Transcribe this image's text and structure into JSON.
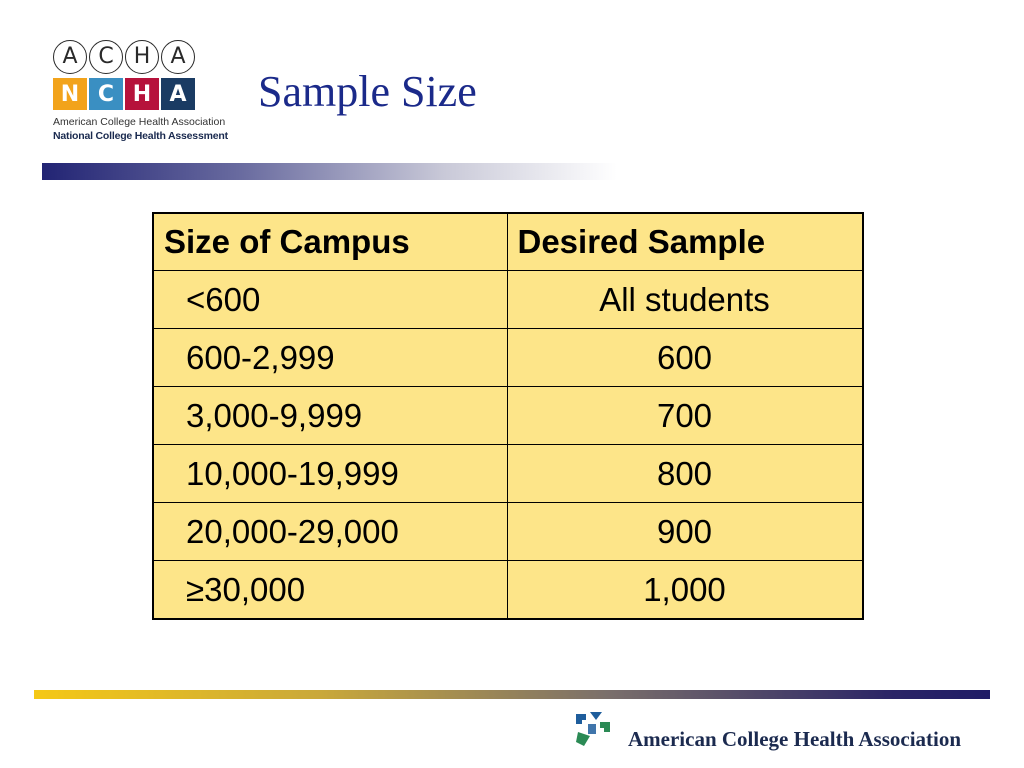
{
  "logo": {
    "circles": [
      "A",
      "C",
      "H",
      "A"
    ],
    "squares": [
      "N",
      "C",
      "H",
      "A"
    ],
    "line1": "American College Health Association",
    "line2": "National College Health Assessment"
  },
  "title": "Sample Size",
  "table": {
    "headers": [
      "Size of Campus",
      "Desired Sample"
    ],
    "rows": [
      [
        "<600",
        "All students"
      ],
      [
        "600-2,999",
        "600"
      ],
      [
        "3,000-9,999",
        "700"
      ],
      [
        "10,000-19,999",
        "800"
      ],
      [
        "20,000-29,000",
        "900"
      ],
      [
        "≥30,000",
        "1,000"
      ]
    ]
  },
  "footer": {
    "organization": "American College Health Association"
  },
  "colors": {
    "title": "#1b2a8a",
    "table_fill": "#fde589",
    "bar_dark": "#222474",
    "bar_gold": "#f5c816"
  }
}
